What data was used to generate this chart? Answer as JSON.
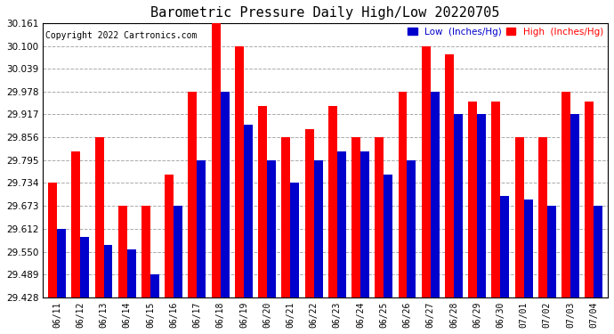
{
  "title": "Barometric Pressure Daily High/Low 20220705",
  "copyright": "Copyright 2022 Cartronics.com",
  "legend_low": "Low  (Inches/Hg)",
  "legend_high": "High  (Inches/Hg)",
  "dates": [
    "06/11",
    "06/12",
    "06/13",
    "06/14",
    "06/15",
    "06/16",
    "06/17",
    "06/18",
    "06/19",
    "06/20",
    "06/21",
    "06/22",
    "06/23",
    "06/24",
    "06/25",
    "06/26",
    "06/27",
    "06/28",
    "06/29",
    "06/30",
    "07/01",
    "07/02",
    "07/03",
    "07/04"
  ],
  "high_values": [
    29.734,
    29.817,
    29.856,
    29.673,
    29.673,
    29.756,
    29.978,
    30.161,
    30.1,
    29.939,
    29.856,
    29.878,
    29.939,
    29.856,
    29.856,
    29.978,
    30.1,
    30.078,
    29.951,
    29.951,
    29.856,
    29.856,
    29.978,
    29.951
  ],
  "low_values": [
    29.612,
    29.59,
    29.568,
    29.556,
    29.489,
    29.673,
    29.795,
    29.978,
    29.89,
    29.795,
    29.734,
    29.795,
    29.817,
    29.817,
    29.756,
    29.795,
    29.978,
    29.917,
    29.917,
    29.7,
    29.69,
    29.673,
    29.917,
    29.673
  ],
  "ylim_min": 29.428,
  "ylim_max": 30.161,
  "yticks": [
    29.428,
    29.489,
    29.55,
    29.612,
    29.673,
    29.734,
    29.795,
    29.856,
    29.917,
    29.978,
    30.039,
    30.1,
    30.161
  ],
  "bar_width": 0.38,
  "high_color": "#ff0000",
  "low_color": "#0000cc",
  "background_color": "#ffffff",
  "grid_color": "#aaaaaa",
  "title_fontsize": 11,
  "axis_fontsize": 7.5,
  "copyright_fontsize": 7
}
